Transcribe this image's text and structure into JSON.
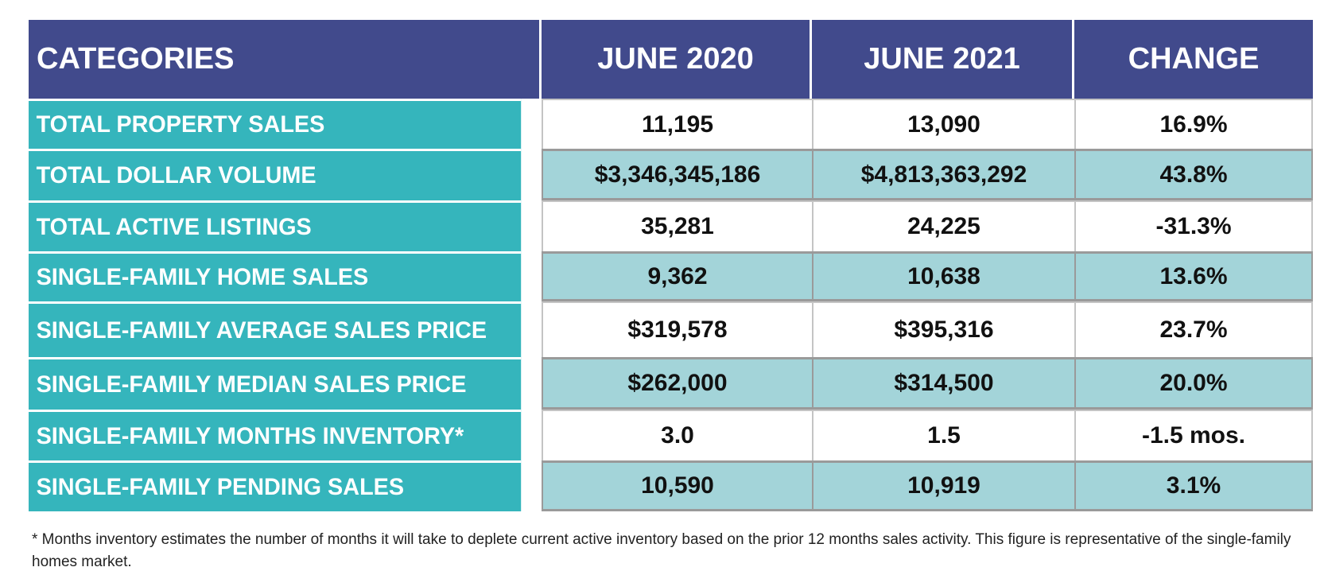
{
  "table": {
    "headers": [
      "CATEGORIES",
      "JUNE 2020",
      "JUNE 2021",
      "CHANGE"
    ],
    "rows": [
      {
        "category": "TOTAL PROPERTY SALES",
        "june_2020": "11,195",
        "june_2021": "13,090",
        "change": "16.9%"
      },
      {
        "category": "TOTAL DOLLAR VOLUME",
        "june_2020": "$3,346,345,186",
        "june_2021": "$4,813,363,292",
        "change": "43.8%"
      },
      {
        "category": "TOTAL ACTIVE LISTINGS",
        "june_2020": "35,281",
        "june_2021": "24,225",
        "change": "-31.3%"
      },
      {
        "category": "SINGLE-FAMILY HOME SALES",
        "june_2020": "9,362",
        "june_2021": "10,638",
        "change": "13.6%"
      },
      {
        "category": "SINGLE-FAMILY AVERAGE SALES PRICE",
        "june_2020": "$319,578",
        "june_2021": "$395,316",
        "change": "23.7%"
      },
      {
        "category": "SINGLE-FAMILY MEDIAN SALES PRICE",
        "june_2020": "$262,000",
        "june_2021": "$314,500",
        "change": "20.0%"
      },
      {
        "category": "SINGLE-FAMILY MONTHS INVENTORY*",
        "june_2020": "3.0",
        "june_2021": "1.5",
        "change": "-1.5 mos."
      },
      {
        "category": "SINGLE-FAMILY PENDING SALES",
        "june_2020": "10,590",
        "june_2021": "10,919",
        "change": "3.1%"
      }
    ]
  },
  "footnote": "* Months inventory estimates the number of months it will take to deplete current active inventory based on the prior 12 months sales activity. This figure is representative of the single-family homes market.",
  "colors": {
    "header_bg": "#414a8c",
    "category_bg": "#35b5bc",
    "tint_row_bg": "#a3d4d9"
  }
}
